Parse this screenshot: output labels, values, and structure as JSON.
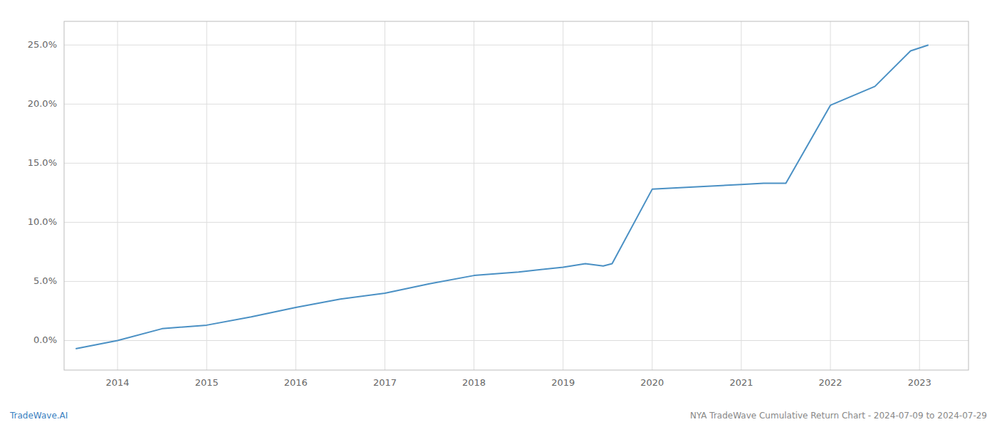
{
  "chart_data": {
    "type": "line",
    "x": [
      2013.53,
      2014.0,
      2014.5,
      2015.0,
      2015.5,
      2016.0,
      2016.5,
      2017.0,
      2017.5,
      2018.0,
      2018.5,
      2019.0,
      2019.25,
      2019.45,
      2019.55,
      2020.0,
      2020.5,
      2021.0,
      2021.25,
      2021.5,
      2022.0,
      2022.5,
      2022.9,
      2023.1
    ],
    "values": [
      -0.007,
      0.0,
      0.01,
      0.013,
      0.02,
      0.028,
      0.035,
      0.04,
      0.048,
      0.055,
      0.058,
      0.062,
      0.065,
      0.063,
      0.065,
      0.128,
      0.13,
      0.132,
      0.133,
      0.133,
      0.199,
      0.215,
      0.245,
      0.25
    ],
    "color": "#4a90c4",
    "xlim": [
      2013.4,
      2023.55
    ],
    "xticks": [
      2014,
      2015,
      2016,
      2017,
      2018,
      2019,
      2020,
      2021,
      2022,
      2023
    ],
    "ylim": [
      -0.025,
      0.27
    ],
    "yticks": [
      {
        "value": 0.0,
        "label": "0.0%"
      },
      {
        "value": 0.05,
        "label": "5.0%"
      },
      {
        "value": 0.1,
        "label": "10.0%"
      },
      {
        "value": 0.15,
        "label": "15.0%"
      },
      {
        "value": 0.2,
        "label": "20.0%"
      },
      {
        "value": 0.25,
        "label": "25.0%"
      }
    ],
    "grid": true,
    "annotations": [
      "TradeWave.AI",
      "NYA TradeWave Cumulative Return Chart - 2024-07-09 to 2024-07-29"
    ]
  }
}
